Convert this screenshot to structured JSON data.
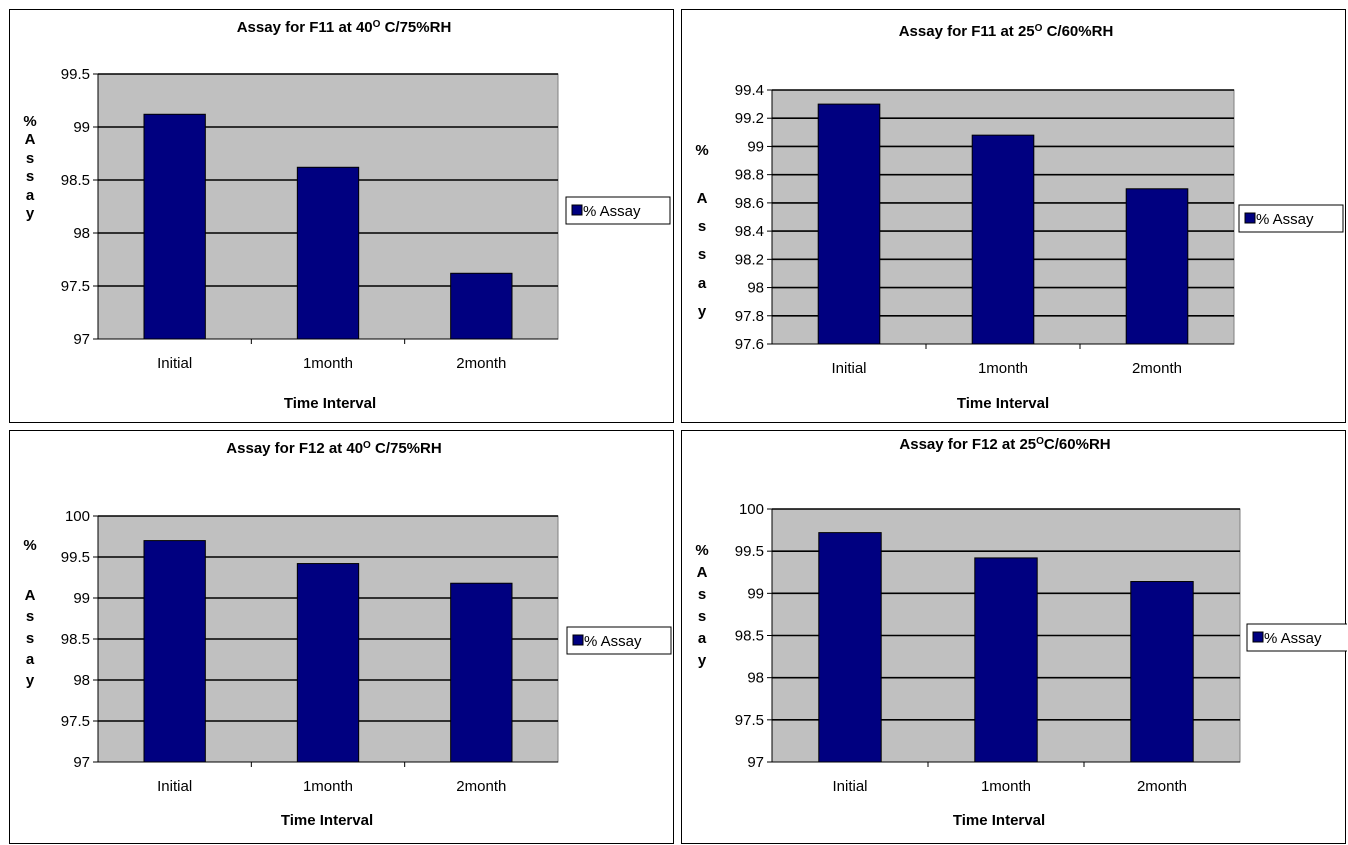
{
  "chart_data": [
    {
      "type": "bar",
      "title": "Assay for F11 at 40",
      "title_sup": "O",
      "title_suffix": " C/75%RH",
      "categories": [
        "Initial",
        "1month",
        "2month"
      ],
      "series": [
        {
          "name": "% Assay",
          "values": [
            99.12,
            98.62,
            97.62
          ]
        }
      ],
      "xlabel": "Time Interval",
      "ylabel": [
        "%",
        "A",
        "s",
        "s",
        "a",
        "y"
      ],
      "ylim": [
        97,
        99.5
      ],
      "yticks": [
        "97",
        "97.5",
        "98",
        "98.5",
        "99",
        "99.5"
      ],
      "grid": true,
      "legend": "right"
    },
    {
      "type": "bar",
      "title": "Assay for F11 at 25",
      "title_sup": "O",
      "title_suffix": " C/60%RH",
      "categories": [
        "Initial",
        "1month",
        "2month"
      ],
      "series": [
        {
          "name": "% Assay",
          "values": [
            99.3,
            99.08,
            98.7
          ]
        }
      ],
      "xlabel": "Time Interval",
      "ylabel": [
        "%",
        "A",
        "s",
        "s",
        "a",
        "y"
      ],
      "ylim": [
        97.6,
        99.4
      ],
      "yticks": [
        "97.6",
        "97.8",
        "98",
        "98.2",
        "98.4",
        "98.6",
        "98.8",
        "99",
        "99.2",
        "99.4"
      ],
      "grid": true,
      "legend": "right"
    },
    {
      "type": "bar",
      "title": "Assay for F12 at 40",
      "title_sup": "O",
      "title_suffix": " C/75%RH",
      "categories": [
        "Initial",
        "1month",
        "2month"
      ],
      "series": [
        {
          "name": "% Assay",
          "values": [
            99.7,
            99.42,
            99.18
          ]
        }
      ],
      "xlabel": "Time Interval",
      "ylabel": [
        "%",
        "A",
        "s",
        "s",
        "a",
        "y"
      ],
      "ylim": [
        97,
        100
      ],
      "yticks": [
        "97",
        "97.5",
        "98",
        "98.5",
        "99",
        "99.5",
        "100"
      ],
      "grid": true,
      "legend": "right"
    },
    {
      "type": "bar",
      "title": "Assay for F12 at 25",
      "title_sup": "O",
      "title_suffix": "C/60%RH",
      "categories": [
        "Initial",
        "1month",
        "2month"
      ],
      "series": [
        {
          "name": "% Assay",
          "values": [
            99.72,
            99.42,
            99.14
          ]
        }
      ],
      "xlabel": "Time Interval",
      "ylabel": [
        "%",
        "A",
        "s",
        "s",
        "a",
        "y"
      ],
      "ylim": [
        97,
        100
      ],
      "yticks": [
        "97",
        "97.5",
        "98",
        "98.5",
        "99",
        "99.5",
        "100"
      ],
      "grid": true,
      "legend": "right"
    }
  ],
  "colors": {
    "bar_fill": "#000080",
    "plot_background": "#c0c0c0",
    "gridline": "#000000"
  }
}
